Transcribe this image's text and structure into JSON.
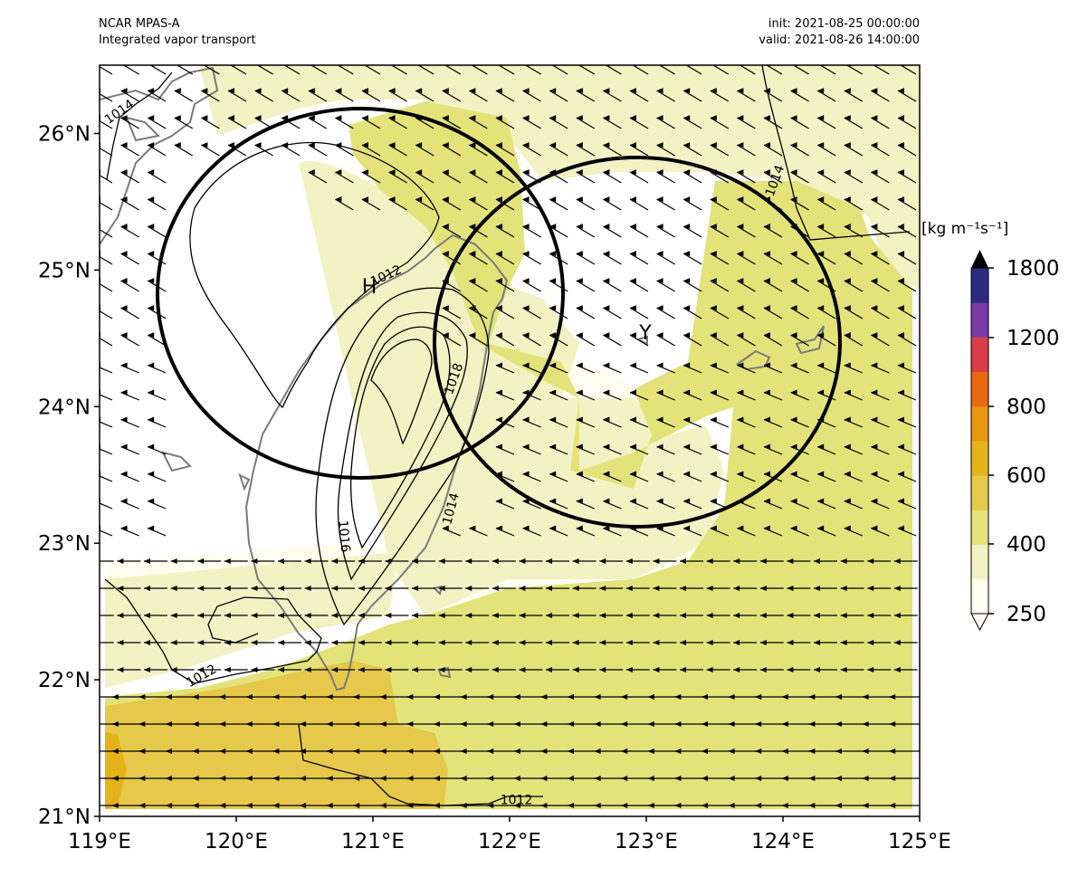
{
  "header": {
    "model": "NCAR MPAS-A",
    "field": "Integrated vapor transport",
    "init": "init: 2021-08-25 00:00:00",
    "valid": "valid: 2021-08-26 14:00:00"
  },
  "map": {
    "lon_range": [
      119,
      125
    ],
    "lat_range": [
      21,
      26.5
    ],
    "lon_ticks": [
      "119°E",
      "120°E",
      "121°E",
      "122°E",
      "123°E",
      "124°E",
      "125°E"
    ],
    "lat_ticks": [
      "21°N",
      "22°N",
      "23°N",
      "24°N",
      "25°N",
      "26°N"
    ],
    "markers": [
      {
        "label": "H",
        "lon": 120.97,
        "lat": 24.85
      },
      {
        "label": "Y",
        "lon": 122.9,
        "lat": 24.5
      }
    ],
    "circles": [
      {
        "name": "circle-north-taiwan",
        "center_lon": 120.9,
        "center_lat": 24.85,
        "radius_deg_lat": 1.35
      },
      {
        "name": "circle-east",
        "center_lon": 122.95,
        "center_lat": 24.45,
        "radius_deg_lat": 1.35
      }
    ],
    "pressure_labels": [
      {
        "text": "1014",
        "lon": 119.15,
        "lat": 26.15,
        "rot": -35
      },
      {
        "text": "1012",
        "lon": 121.1,
        "lat": 24.95,
        "rot": -25
      },
      {
        "text": "1018",
        "lon": 121.6,
        "lat": 24.2,
        "rot": -70
      },
      {
        "text": "1016",
        "lon": 120.78,
        "lat": 23.05,
        "rot": 85
      },
      {
        "text": "1014",
        "lon": 121.58,
        "lat": 23.25,
        "rot": -75
      },
      {
        "text": "1014",
        "lon": 123.95,
        "lat": 25.65,
        "rot": -70
      },
      {
        "text": "1012",
        "lon": 119.75,
        "lat": 22.02,
        "rot": -30
      },
      {
        "text": "1012",
        "lon": 122.05,
        "lat": 21.11,
        "rot": 0
      }
    ]
  },
  "colorbar": {
    "units_label": "[kg m⁻¹s⁻¹]",
    "tick_labels": [
      "250",
      "400",
      "600",
      "800",
      "1200",
      "1800"
    ],
    "colors": [
      "#fdfdf0",
      "#f2f2c4",
      "#e3e37a",
      "#e6c94a",
      "#e6b21a",
      "#e8960e",
      "#e86a0e",
      "#dc3c46",
      "#7a3aa8",
      "#2b2b80"
    ],
    "extend_max_color": "#000000"
  }
}
